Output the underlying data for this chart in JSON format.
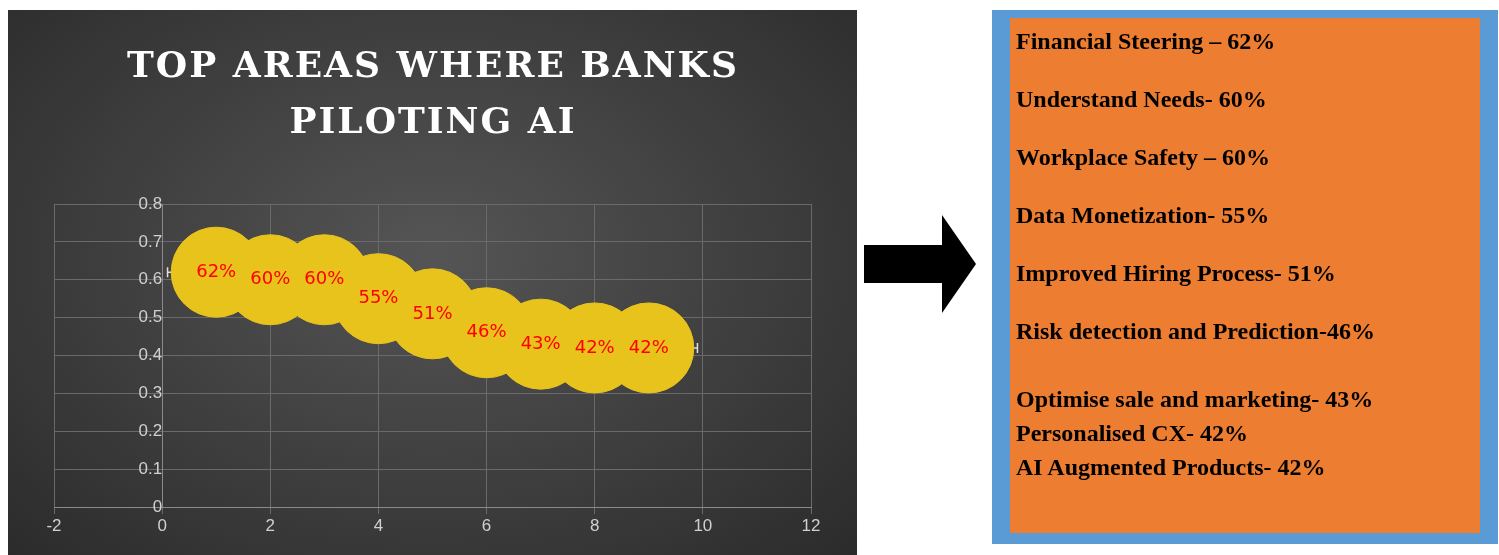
{
  "chart_data": [
    {
      "type": "bubble",
      "title": "TOP AREAS WHERE BANKS PILOTING AI",
      "x": [
        1,
        2,
        3,
        4,
        5,
        6,
        7,
        8,
        9
      ],
      "series": [
        {
          "color": "#e8c31c",
          "values": [
            0.62,
            0.6,
            0.6,
            0.55,
            0.51,
            0.46,
            0.43,
            0.42,
            0.42
          ],
          "sizes": [
            1,
            1,
            1,
            1,
            1,
            1,
            1,
            1,
            1
          ],
          "value_labels": [
            "62%",
            "60%",
            "60%",
            "55%",
            "51%",
            "46%",
            "43%",
            "42%",
            "42%"
          ],
          "xerrors": [
            0.9,
            null,
            null,
            null,
            null,
            null,
            null,
            null,
            0.9
          ]
        }
      ],
      "xlim": [
        -2,
        12
      ],
      "xticks": [
        -2,
        0,
        2,
        4,
        6,
        8,
        10,
        12
      ],
      "ylim": [
        0,
        0.8
      ],
      "yticks": [
        0,
        0.1,
        0.2,
        0.3,
        0.4,
        0.5,
        0.6,
        0.7,
        0.8
      ],
      "grid": true,
      "legend": false
    },
    {
      "type": "other",
      "annotations": [
        "Financial Steering – 62%",
        "Understand Needs- 60%",
        "Workplace Safety – 60%",
        "Data Monetization- 55%",
        "Improved Hiring Process- 51%",
        "Risk detection and Prediction-46%",
        "Optimise sale and marketing- 43%",
        "Personalised CX- 42%",
        "AI Augmented Products- 42%"
      ]
    }
  ]
}
